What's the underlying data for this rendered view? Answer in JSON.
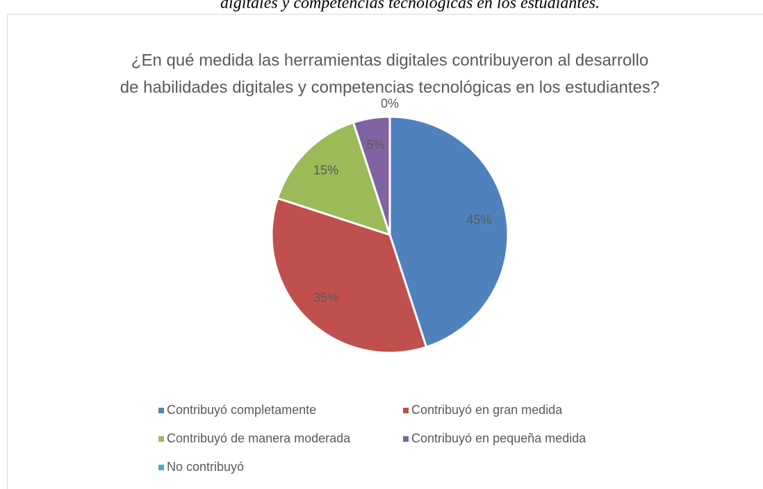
{
  "caption": "digitales y competencias tecnológicas en los estudiantes.",
  "chart_data": {
    "type": "pie",
    "title": [
      "¿En qué medida las herramientas digitales contribuyeron al desarrollo",
      "de habilidades digitales y competencias tecnológicas en los estudiantes?"
    ],
    "categories": [
      "Contribuyó completamente",
      "Contribuyó en gran medida",
      "Contribuyó de manera moderada",
      "Contribuyó en pequeña medida",
      "No contribuyó"
    ],
    "values": [
      45,
      35,
      15,
      5,
      0
    ],
    "value_labels": [
      "45%",
      "35%",
      "15%",
      "5%",
      "0%"
    ],
    "colors": [
      "#4f81bd",
      "#c0504d",
      "#9bbb59",
      "#8064a2",
      "#4bacc6"
    ],
    "legend": "bottom"
  }
}
